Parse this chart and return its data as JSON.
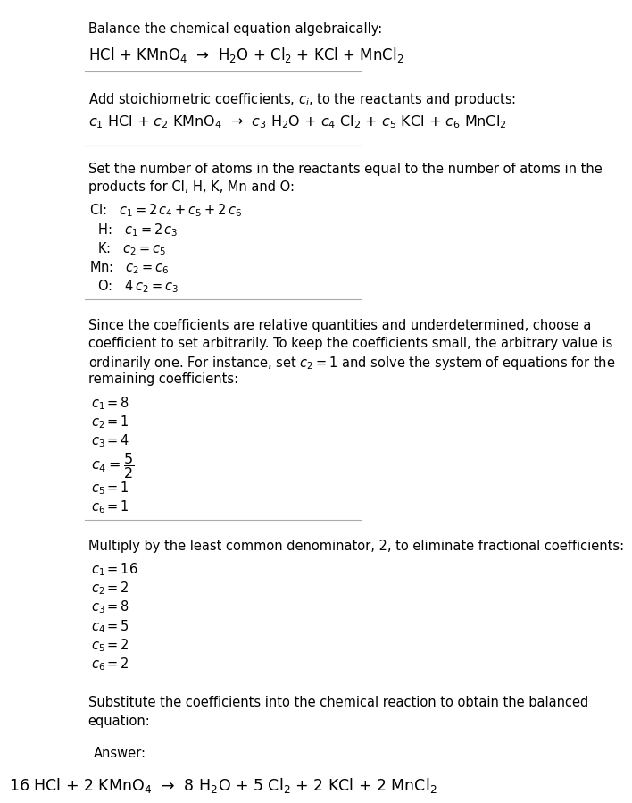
{
  "title": "Balance the chemical equation algebraically:",
  "reaction_unbalanced": "HCl + KMnO$_4$  →  H$_2$O + Cl$_2$ + KCl + MnCl$_2$",
  "section2_title": "Add stoichiometric coefficients, $c_i$, to the reactants and products:",
  "reaction_coeff": "$c_1$ HCl + $c_2$ KMnO$_4$  →  $c_3$ H$_2$O + $c_4$ Cl$_2$ + $c_5$ KCl + $c_6$ MnCl$_2$",
  "section3_title": "Set the number of atoms in the reactants equal to the number of atoms in the\nproducts for Cl, H, K, Mn and O:",
  "equations": [
    "Cl:   $c_1 = 2\\,c_4 + c_5 + 2\\,c_6$",
    "  H:   $c_1 = 2\\,c_3$",
    "  K:   $c_2 = c_5$",
    "Mn:   $c_2 = c_6$",
    "  O:   $4\\,c_2 = c_3$"
  ],
  "section4_text": "Since the coefficients are relative quantities and underdetermined, choose a\ncoefficient to set arbitrarily. To keep the coefficients small, the arbitrary value is\nordinarily one. For instance, set $c_2 = 1$ and solve the system of equations for the\nremaining coefficients:",
  "solution1": [
    "$c_1 = 8$",
    "$c_2 = 1$",
    "$c_3 = 4$",
    "$c_4 = \\dfrac{5}{2}$",
    "$c_5 = 1$",
    "$c_6 = 1$"
  ],
  "section5_text": "Multiply by the least common denominator, 2, to eliminate fractional coefficients:",
  "solution2": [
    "$c_1 = 16$",
    "$c_2 = 2$",
    "$c_3 = 8$",
    "$c_4 = 5$",
    "$c_5 = 2$",
    "$c_6 = 2$"
  ],
  "section6_text": "Substitute the coefficients into the chemical reaction to obtain the balanced\nequation:",
  "answer_label": "Answer:",
  "answer_reaction": "16 HCl + 2 KMnO$_4$  →  8 H$_2$O + 5 Cl$_2$ + 2 KCl + 2 MnCl$_2$",
  "bg_color": "#ffffff",
  "answer_box_color": "#e8f4f8",
  "answer_box_border": "#a0c8d8",
  "text_color": "#000000",
  "font_size": 10.5,
  "small_font": 9.5
}
